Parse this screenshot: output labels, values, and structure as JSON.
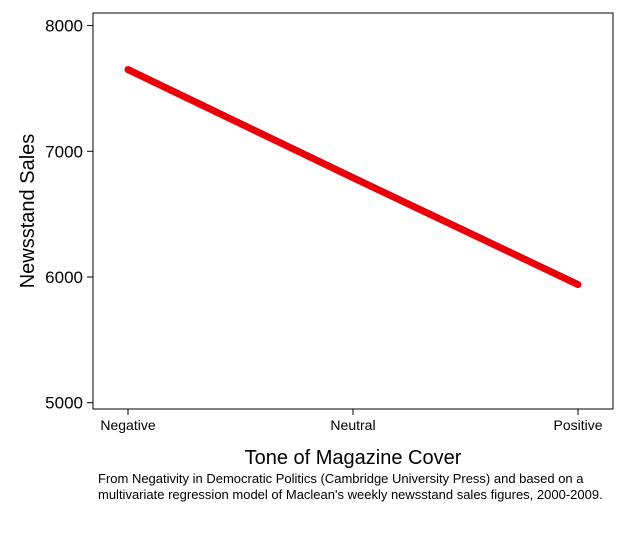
{
  "chart_data": {
    "type": "line",
    "xlabel": "Tone of Magazine Cover",
    "ylabel": "Newsstand Sales",
    "categories": [
      "Negative",
      "Neutral",
      "Positive"
    ],
    "x": [
      0,
      1,
      2
    ],
    "series": [
      {
        "values": [
          7650,
          6790,
          5940
        ],
        "color": "#e8000b"
      }
    ],
    "ylim": [
      4950,
      8100
    ],
    "yticks": [
      5000,
      6000,
      7000,
      8000
    ],
    "grid": false,
    "legend": "none"
  },
  "caption": "From Negativity in Democratic Politics (Cambridge University Press) and based on a multivariate regression model of Maclean's weekly newsstand sales figures, 2000-2009."
}
